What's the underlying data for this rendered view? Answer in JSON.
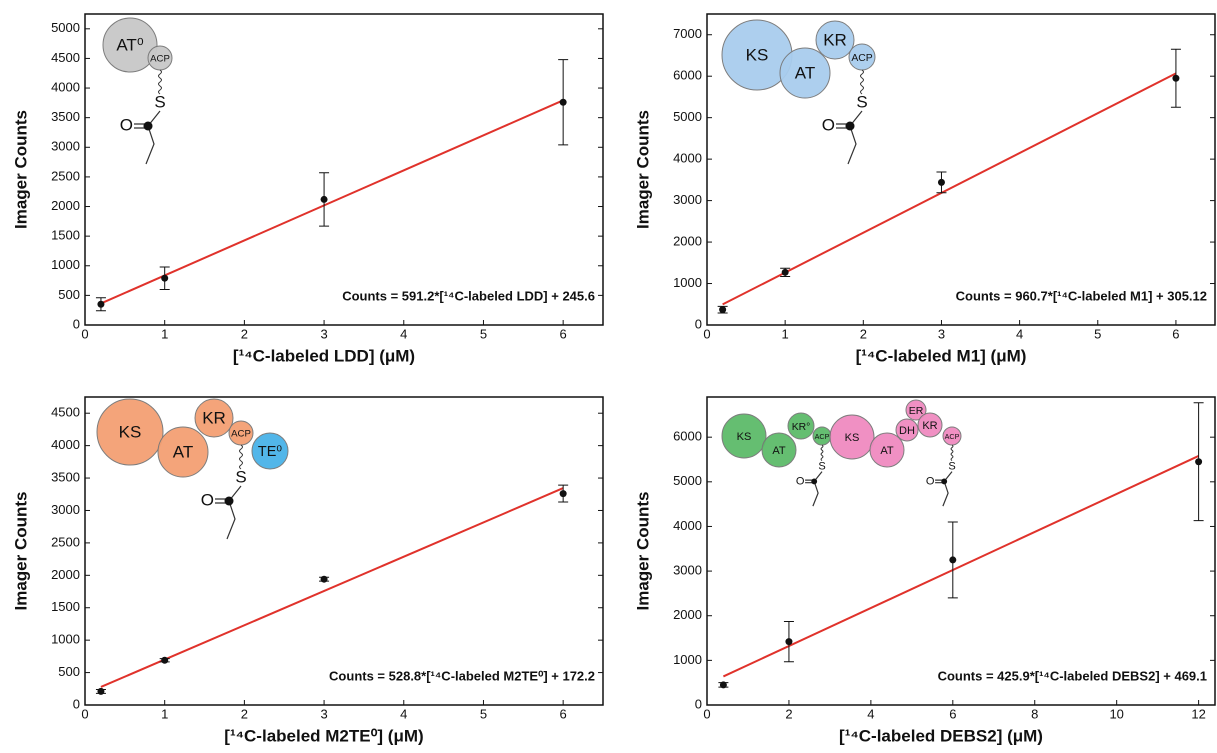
{
  "chart_data": [
    {
      "type": "scatter",
      "xlabel": "[¹⁴C-labeled LDD] (μM)",
      "ylabel": "Imager Counts",
      "annotation": "Counts = 591.2*[¹⁴C-labeled LDD] + 245.6",
      "x": [
        0.2,
        1,
        3,
        6
      ],
      "values": [
        350,
        790,
        2120,
        3760
      ],
      "errors": [
        110,
        190,
        450,
        720
      ],
      "color": "#111111",
      "fit": {
        "x": [
          0.2,
          6
        ],
        "values": [
          364,
          3793
        ],
        "color": "#e0322b"
      },
      "xlim": [
        0,
        6.5
      ],
      "ylim": [
        0,
        5250
      ],
      "xticks": [
        0,
        1,
        2,
        3,
        4,
        5,
        6
      ],
      "yticks": [
        0,
        500,
        1000,
        1500,
        2000,
        2500,
        3000,
        3500,
        4000,
        4500,
        5000
      ],
      "diagram": {
        "domains": [
          {
            "name": "AT⁰",
            "color": "#c8c8c8"
          },
          {
            "name": "ACP",
            "color": "#c8c8c8"
          }
        ],
        "attachments": [
          {
            "sulfur": "S",
            "oxygen": "O"
          }
        ]
      }
    },
    {
      "type": "scatter",
      "xlabel": "[¹⁴C-labeled M1] (μM)",
      "ylabel": "Imager Counts",
      "annotation": "Counts = 960.7*[¹⁴C-labeled M1] + 305.12",
      "x": [
        0.2,
        1,
        3,
        6
      ],
      "values": [
        370,
        1270,
        3440,
        5950
      ],
      "errors": [
        80,
        100,
        250,
        700
      ],
      "color": "#111111",
      "fit": {
        "x": [
          0.2,
          6
        ],
        "values": [
          497,
          6069
        ],
        "color": "#e0322b"
      },
      "xlim": [
        0,
        6.5
      ],
      "ylim": [
        0,
        7500
      ],
      "xticks": [
        0,
        1,
        2,
        3,
        4,
        5,
        6
      ],
      "yticks": [
        0,
        1000,
        2000,
        3000,
        4000,
        5000,
        6000,
        7000
      ],
      "diagram": {
        "domains": [
          {
            "name": "KS",
            "color": "#a9cdee"
          },
          {
            "name": "AT",
            "color": "#a9cdee"
          },
          {
            "name": "KR",
            "color": "#a9cdee"
          },
          {
            "name": "ACP",
            "color": "#a9cdee"
          }
        ],
        "attachments": [
          {
            "sulfur": "S",
            "oxygen": "O"
          }
        ]
      }
    },
    {
      "type": "scatter",
      "xlabel": "[¹⁴C-labeled M2TE⁰] (μM)",
      "ylabel": "Imager Counts",
      "annotation": "Counts = 528.8*[¹⁴C-labeled M2TE⁰] + 172.2",
      "x": [
        0.2,
        1,
        3,
        6
      ],
      "values": [
        210,
        690,
        1940,
        3260
      ],
      "errors": [
        30,
        25,
        30,
        130
      ],
      "color": "#111111",
      "fit": {
        "x": [
          0.2,
          6
        ],
        "values": [
          278,
          3345
        ],
        "color": "#e0322b"
      },
      "xlim": [
        0,
        6.5
      ],
      "ylim": [
        0,
        4750
      ],
      "xticks": [
        0,
        1,
        2,
        3,
        4,
        5,
        6
      ],
      "yticks": [
        0,
        500,
        1000,
        1500,
        2000,
        2500,
        3000,
        3500,
        4000,
        4500
      ],
      "diagram": {
        "domains": [
          {
            "name": "KS",
            "color": "#f4a073"
          },
          {
            "name": "AT",
            "color": "#f4a073"
          },
          {
            "name": "KR",
            "color": "#f4a073"
          },
          {
            "name": "ACP",
            "color": "#f4a073"
          },
          {
            "name": "TE⁰",
            "color": "#49b3e8"
          }
        ],
        "attachments": [
          {
            "sulfur": "S",
            "oxygen": "O"
          }
        ]
      }
    },
    {
      "type": "scatter",
      "xlabel": "[¹⁴C-labeled DEBS2] (μM)",
      "ylabel": "Imager Counts",
      "annotation": "Counts = 425.9*[¹⁴C-labeled DEBS2] + 469.1",
      "x": [
        0.4,
        2,
        6,
        12
      ],
      "values": [
        450,
        1420,
        3250,
        5450
      ],
      "errors": [
        50,
        450,
        850,
        1320
      ],
      "color": "#111111",
      "fit": {
        "x": [
          0.4,
          12
        ],
        "values": [
          640,
          5580
        ],
        "color": "#e0322b"
      },
      "xlim": [
        0,
        12.4
      ],
      "ylim": [
        0,
        6900
      ],
      "xticks": [
        0,
        2,
        4,
        6,
        8,
        10,
        12
      ],
      "yticks": [
        0,
        1000,
        2000,
        3000,
        4000,
        5000,
        6000
      ],
      "diagram": {
        "domains": [
          {
            "name": "KS",
            "color": "#5dbb6a"
          },
          {
            "name": "AT",
            "color": "#5dbb6a"
          },
          {
            "name": "KR°",
            "color": "#5dbb6a"
          },
          {
            "name": "ACP",
            "color": "#5dbb6a"
          },
          {
            "name": "KS",
            "color": "#f08bc0"
          },
          {
            "name": "AT",
            "color": "#f08bc0"
          },
          {
            "name": "DH",
            "color": "#f08bc0"
          },
          {
            "name": "ER",
            "color": "#f08bc0"
          },
          {
            "name": "KR",
            "color": "#f08bc0"
          },
          {
            "name": "ACP",
            "color": "#f08bc0"
          }
        ],
        "attachments": [
          {
            "sulfur": "S",
            "oxygen": "O"
          },
          {
            "sulfur": "S",
            "oxygen": "O"
          }
        ]
      }
    }
  ]
}
